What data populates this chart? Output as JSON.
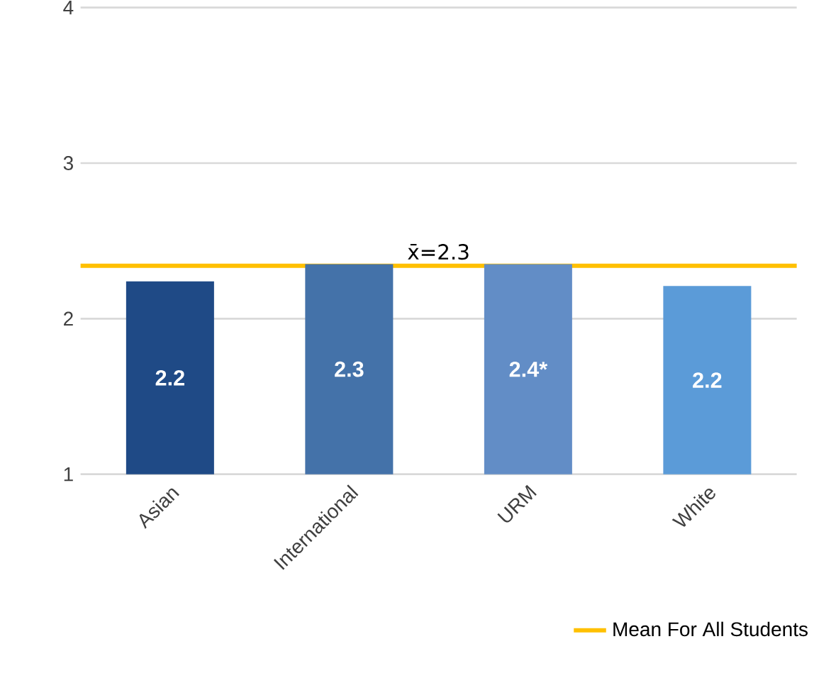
{
  "chart_data": {
    "type": "bar",
    "categories": [
      "Asian",
      "International",
      "URM",
      "White"
    ],
    "values": [
      2.24,
      2.35,
      2.35,
      2.21
    ],
    "colors": [
      "#1f4a86",
      "#4472a9",
      "#628dc6",
      "#5b9bd8"
    ],
    "value_labels": [
      "2.2",
      "2.3",
      "2.4*",
      "2.2"
    ],
    "ylim": [
      1,
      4
    ],
    "yticks": [
      1,
      2,
      3,
      4
    ],
    "grid": "y",
    "legend": "bottom right",
    "ref_lines": [
      {
        "axis": "y",
        "value": 2.34,
        "label": "Mean For All Students",
        "color": "#ffc000",
        "line_style": "solid"
      }
    ],
    "annotations": [
      {
        "text": "x̄=2.3",
        "y": 2.34
      }
    ]
  }
}
